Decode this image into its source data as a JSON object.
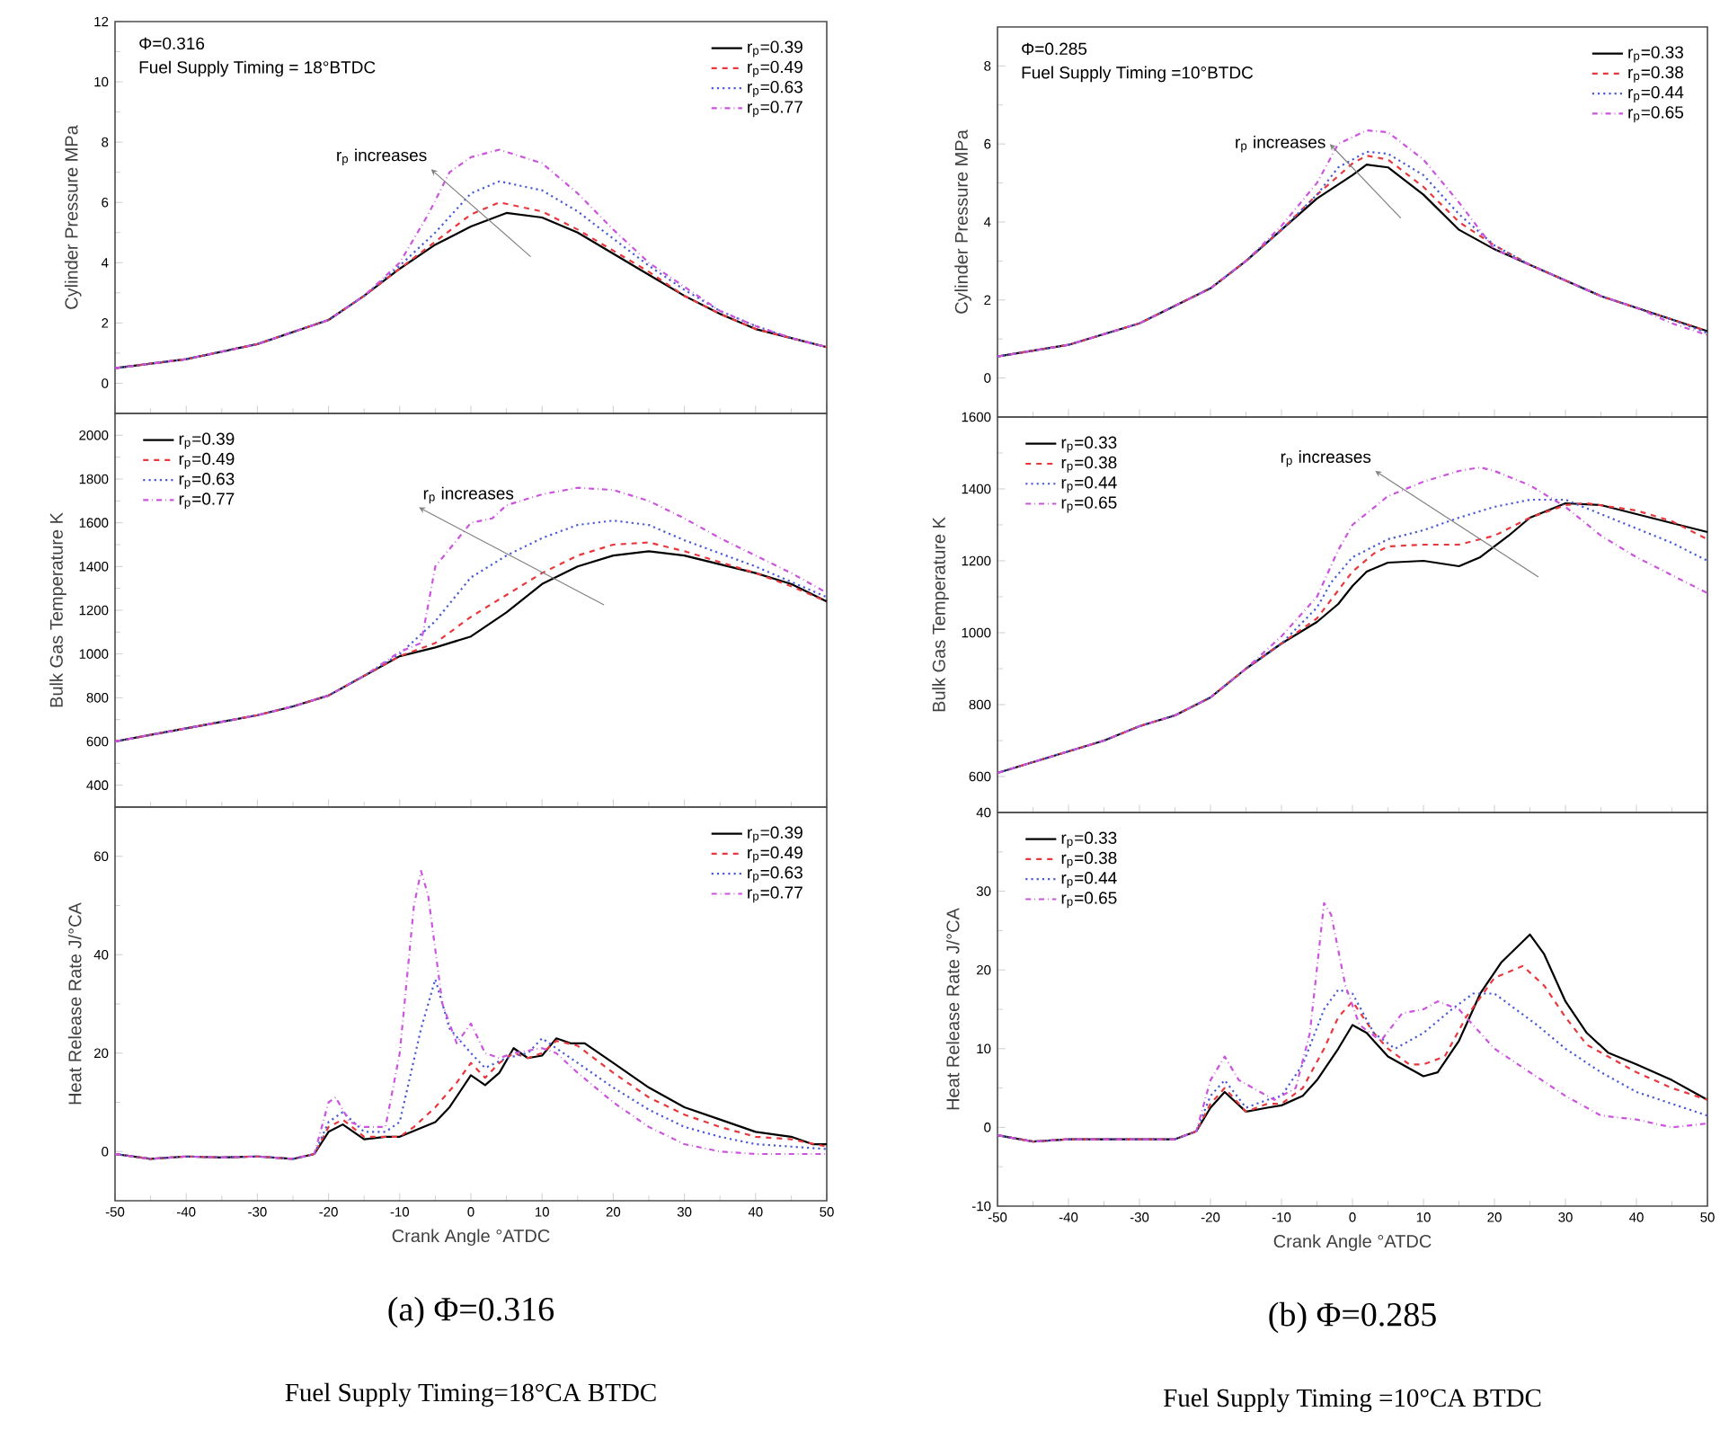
{
  "chart_data": [
    {
      "type": "line",
      "ylabel": "Cylinder Pressure MPa",
      "xlim": [
        -50,
        50
      ],
      "xticks": [
        -50,
        -40,
        -30,
        -20,
        -10,
        0,
        10,
        20,
        30,
        40,
        50
      ],
      "ylim": [
        -1,
        12
      ],
      "yticks": [
        0,
        2,
        4,
        6,
        8,
        10,
        12
      ],
      "tick_labels": "y",
      "legend": "top right",
      "annotations": [
        "Φ=0.316",
        "Fuel Supply Timing = 18°BTDC",
        "r$_{p}$ increases"
      ],
      "series": [
        {
          "name": "r$_{p}$=0.39",
          "color": "#000000",
          "line_style": "solid",
          "x": [
            -50,
            -40,
            -30,
            -20,
            -15,
            -10,
            -5,
            0,
            5,
            10,
            15,
            20,
            25,
            30,
            35,
            40,
            45,
            50
          ],
          "values": [
            0.5,
            0.8,
            1.3,
            2.1,
            2.9,
            3.8,
            4.6,
            5.2,
            5.65,
            5.5,
            5.0,
            4.3,
            3.6,
            2.9,
            2.3,
            1.8,
            1.5,
            1.2
          ]
        },
        {
          "name": "r$_{p}$=0.49",
          "color": "#e8383d",
          "line_style": "dashed",
          "x": [
            -50,
            -40,
            -30,
            -20,
            -15,
            -10,
            -5,
            0,
            4,
            10,
            15,
            20,
            25,
            30,
            35,
            40,
            45,
            50
          ],
          "values": [
            0.5,
            0.8,
            1.3,
            2.1,
            2.9,
            3.8,
            4.7,
            5.6,
            6.0,
            5.7,
            5.1,
            4.4,
            3.7,
            2.9,
            2.3,
            1.8,
            1.5,
            1.2
          ]
        },
        {
          "name": "r$_{p}$=0.63",
          "color": "#4a5bd4",
          "line_style": "dotted",
          "x": [
            -50,
            -40,
            -30,
            -20,
            -15,
            -10,
            -5,
            0,
            4,
            10,
            15,
            20,
            25,
            30,
            35,
            40,
            45,
            50
          ],
          "values": [
            0.5,
            0.8,
            1.3,
            2.1,
            2.9,
            3.9,
            5.0,
            6.3,
            6.7,
            6.4,
            5.7,
            4.8,
            3.9,
            3.1,
            2.4,
            1.9,
            1.5,
            1.2
          ]
        },
        {
          "name": "r$_{p}$=0.77",
          "color": "#cc55dd",
          "line_style": "dashdot",
          "x": [
            -50,
            -40,
            -30,
            -20,
            -15,
            -10,
            -6,
            -3,
            0,
            4,
            10,
            15,
            20,
            25,
            30,
            35,
            40,
            45,
            50
          ],
          "values": [
            0.5,
            0.8,
            1.3,
            2.1,
            2.9,
            4.0,
            5.6,
            7.0,
            7.5,
            7.75,
            7.3,
            6.3,
            5.1,
            4.0,
            3.2,
            2.4,
            1.9,
            1.5,
            1.2
          ]
        }
      ]
    },
    {
      "type": "line",
      "ylabel": "Cylinder Pressure MPa",
      "xlim": [
        -50,
        50
      ],
      "xticks": [
        -50,
        -40,
        -30,
        -20,
        -10,
        0,
        10,
        20,
        30,
        40,
        50
      ],
      "ylim": [
        -1,
        9
      ],
      "yticks": [
        0,
        2,
        4,
        6,
        8
      ],
      "tick_labels": "y",
      "legend": "top right",
      "annotations": [
        "Φ=0.285",
        "Fuel Supply Timing =10°BTDC",
        "r$_{p}$ increases"
      ],
      "series": [
        {
          "name": "r$_{p}$=0.33",
          "color": "#000000",
          "line_style": "solid",
          "x": [
            -50,
            -40,
            -30,
            -20,
            -15,
            -10,
            -5,
            0,
            2,
            5,
            10,
            15,
            20,
            25,
            30,
            35,
            40,
            45,
            50
          ],
          "values": [
            0.55,
            0.85,
            1.4,
            2.3,
            3.0,
            3.8,
            4.6,
            5.2,
            5.47,
            5.4,
            4.7,
            3.8,
            3.3,
            2.9,
            2.5,
            2.1,
            1.8,
            1.5,
            1.2
          ]
        },
        {
          "name": "r$_{p}$=0.38",
          "color": "#e8383d",
          "line_style": "dashed",
          "x": [
            -50,
            -40,
            -30,
            -20,
            -15,
            -10,
            -5,
            0,
            2,
            5,
            10,
            15,
            20,
            25,
            30,
            35,
            40,
            45,
            50
          ],
          "values": [
            0.55,
            0.85,
            1.4,
            2.3,
            3.0,
            3.8,
            4.7,
            5.5,
            5.7,
            5.6,
            4.9,
            4.0,
            3.4,
            2.9,
            2.5,
            2.1,
            1.8,
            1.5,
            1.2
          ]
        },
        {
          "name": "r$_{p}$=0.44",
          "color": "#4a5bd4",
          "line_style": "dotted",
          "x": [
            -50,
            -40,
            -30,
            -20,
            -15,
            -10,
            -5,
            -2,
            2,
            5,
            10,
            15,
            20,
            25,
            30,
            35,
            40,
            45,
            50
          ],
          "values": [
            0.55,
            0.85,
            1.4,
            2.3,
            3.0,
            3.8,
            4.7,
            5.4,
            5.8,
            5.75,
            5.2,
            4.2,
            3.4,
            2.9,
            2.5,
            2.1,
            1.8,
            1.5,
            1.15
          ]
        },
        {
          "name": "r$_{p}$=0.65",
          "color": "#cc55dd",
          "line_style": "dashdot",
          "x": [
            -50,
            -40,
            -30,
            -20,
            -15,
            -10,
            -5,
            -2,
            2,
            5,
            10,
            15,
            20,
            25,
            30,
            35,
            40,
            45,
            50
          ],
          "values": [
            0.55,
            0.85,
            1.4,
            2.3,
            3.0,
            3.9,
            5.0,
            6.0,
            6.35,
            6.3,
            5.6,
            4.5,
            3.3,
            2.9,
            2.5,
            2.1,
            1.8,
            1.4,
            1.1
          ]
        }
      ]
    },
    {
      "type": "line",
      "ylabel": "Bulk Gas Temperature K",
      "xlim": [
        -50,
        50
      ],
      "xticks": [
        -50,
        -40,
        -30,
        -20,
        -10,
        0,
        10,
        20,
        30,
        40,
        50
      ],
      "ylim": [
        300,
        2100
      ],
      "yticks": [
        400,
        600,
        800,
        1000,
        1200,
        1400,
        1600,
        1800,
        2000
      ],
      "tick_labels": "y",
      "legend": "top left",
      "annotations": [
        "r$_{p}$ increases"
      ],
      "series": [
        {
          "name": "r$_{p}$=0.39",
          "color": "#000000",
          "line_style": "solid",
          "x": [
            -50,
            -45,
            -40,
            -35,
            -30,
            -25,
            -20,
            -15,
            -10,
            -5,
            0,
            5,
            10,
            15,
            20,
            25,
            30,
            35,
            40,
            45,
            50
          ],
          "values": [
            600,
            630,
            660,
            690,
            720,
            760,
            810,
            900,
            990,
            1030,
            1080,
            1190,
            1320,
            1400,
            1450,
            1470,
            1450,
            1410,
            1370,
            1320,
            1240
          ]
        },
        {
          "name": "r$_{p}$=0.49",
          "color": "#e8383d",
          "line_style": "dashed",
          "x": [
            -50,
            -45,
            -40,
            -35,
            -30,
            -25,
            -20,
            -15,
            -10,
            -5,
            0,
            5,
            10,
            15,
            20,
            25,
            30,
            35,
            40,
            45,
            50
          ],
          "values": [
            600,
            630,
            660,
            690,
            720,
            760,
            810,
            900,
            990,
            1050,
            1170,
            1270,
            1370,
            1450,
            1500,
            1510,
            1470,
            1420,
            1370,
            1310,
            1240
          ]
        },
        {
          "name": "r$_{p}$=0.63",
          "color": "#4a5bd4",
          "line_style": "dotted",
          "x": [
            -50,
            -45,
            -40,
            -35,
            -30,
            -25,
            -20,
            -15,
            -10,
            -5,
            0,
            5,
            10,
            15,
            20,
            25,
            30,
            35,
            40,
            45,
            50
          ],
          "values": [
            600,
            630,
            660,
            690,
            720,
            760,
            810,
            900,
            1000,
            1150,
            1350,
            1450,
            1530,
            1590,
            1610,
            1590,
            1520,
            1460,
            1400,
            1330,
            1260
          ]
        },
        {
          "name": "r$_{p}$=0.77",
          "color": "#cc55dd",
          "line_style": "dashdot",
          "x": [
            -50,
            -45,
            -40,
            -35,
            -30,
            -25,
            -20,
            -15,
            -10,
            -7,
            -5,
            0,
            3,
            5,
            10,
            15,
            20,
            25,
            30,
            35,
            40,
            45,
            50
          ],
          "values": [
            600,
            630,
            660,
            690,
            720,
            760,
            810,
            900,
            1010,
            1050,
            1400,
            1600,
            1620,
            1680,
            1730,
            1760,
            1750,
            1700,
            1620,
            1530,
            1450,
            1370,
            1280
          ]
        }
      ]
    },
    {
      "type": "line",
      "ylabel": "Bulk Gas Temperature K",
      "xlim": [
        -50,
        50
      ],
      "xticks": [
        -50,
        -40,
        -30,
        -20,
        -10,
        0,
        10,
        20,
        30,
        40,
        50
      ],
      "ylim": [
        500,
        1600
      ],
      "yticks": [
        600,
        800,
        1000,
        1200,
        1400,
        1600
      ],
      "tick_labels": "y",
      "legend": "top left",
      "annotations": [
        "r$_{p}$ increases"
      ],
      "series": [
        {
          "name": "r$_{p}$=0.33",
          "color": "#000000",
          "line_style": "solid",
          "x": [
            -50,
            -45,
            -40,
            -35,
            -30,
            -25,
            -20,
            -15,
            -10,
            -5,
            -2,
            0,
            2,
            5,
            10,
            15,
            18,
            22,
            25,
            30,
            35,
            40,
            45,
            50
          ],
          "values": [
            610,
            640,
            670,
            700,
            740,
            770,
            820,
            900,
            970,
            1030,
            1080,
            1130,
            1170,
            1195,
            1200,
            1185,
            1210,
            1270,
            1320,
            1360,
            1355,
            1330,
            1305,
            1280
          ]
        },
        {
          "name": "r$_{p}$=0.38",
          "color": "#e8383d",
          "line_style": "dashed",
          "x": [
            -50,
            -45,
            -40,
            -35,
            -30,
            -25,
            -20,
            -15,
            -10,
            -5,
            0,
            3,
            5,
            10,
            15,
            20,
            25,
            30,
            33,
            40,
            45,
            50
          ],
          "values": [
            610,
            640,
            670,
            700,
            740,
            770,
            820,
            900,
            970,
            1040,
            1170,
            1220,
            1240,
            1245,
            1245,
            1270,
            1320,
            1355,
            1360,
            1340,
            1310,
            1260
          ]
        },
        {
          "name": "r$_{p}$=0.44",
          "color": "#4a5bd4",
          "line_style": "dotted",
          "x": [
            -50,
            -45,
            -40,
            -35,
            -30,
            -25,
            -20,
            -15,
            -10,
            -5,
            -3,
            0,
            5,
            10,
            15,
            20,
            25,
            30,
            35,
            40,
            45,
            50
          ],
          "values": [
            610,
            640,
            670,
            700,
            740,
            770,
            820,
            900,
            970,
            1070,
            1140,
            1210,
            1260,
            1285,
            1320,
            1350,
            1370,
            1370,
            1330,
            1290,
            1250,
            1200
          ]
        },
        {
          "name": "r$_{p}$=0.65",
          "color": "#cc55dd",
          "line_style": "dashdot",
          "x": [
            -50,
            -45,
            -40,
            -35,
            -30,
            -25,
            -20,
            -15,
            -10,
            -5,
            -2,
            0,
            5,
            10,
            15,
            18,
            20,
            25,
            30,
            35,
            40,
            45,
            50
          ],
          "values": [
            610,
            640,
            670,
            700,
            740,
            770,
            820,
            900,
            990,
            1100,
            1230,
            1300,
            1380,
            1420,
            1450,
            1460,
            1450,
            1410,
            1350,
            1270,
            1210,
            1160,
            1110
          ]
        }
      ]
    },
    {
      "type": "line",
      "ylabel": "Heat Release Rate J/°CA",
      "xlabel": "Crank Angle °ATDC",
      "xlim": [
        -50,
        50
      ],
      "xticks": [
        -50,
        -40,
        -30,
        -20,
        -10,
        0,
        10,
        20,
        30,
        40,
        50
      ],
      "ylim": [
        -10,
        70
      ],
      "yticks": [
        0,
        20,
        40,
        60
      ],
      "legend": "top right",
      "annotations": [
        "(a) Φ=0.316",
        "Fuel Supply Timing=18°CA BTDC"
      ],
      "series": [
        {
          "name": "r$_{p}$=0.39",
          "color": "#000000",
          "line_style": "solid",
          "x": [
            -50,
            -45,
            -40,
            -35,
            -30,
            -25,
            -22,
            -20,
            -18,
            -15,
            -12,
            -10,
            -5,
            -3,
            0,
            2,
            4,
            6,
            8,
            10,
            12,
            14,
            16,
            20,
            25,
            30,
            35,
            40,
            45,
            48,
            50
          ],
          "values": [
            -0.5,
            -1.5,
            -1,
            -1.2,
            -1,
            -1.5,
            -0.5,
            4,
            5.5,
            2.5,
            3,
            3,
            6,
            9,
            15.5,
            13.5,
            16,
            21,
            19,
            19.5,
            23,
            22,
            22,
            18,
            13,
            9,
            6.5,
            4,
            3,
            1.5,
            1.5
          ]
        },
        {
          "name": "r$_{p}$=0.49",
          "color": "#e8383d",
          "line_style": "dashed",
          "x": [
            -50,
            -45,
            -40,
            -35,
            -30,
            -25,
            -22,
            -20,
            -18,
            -15,
            -10,
            -8,
            -5,
            -2,
            0,
            2,
            4,
            6,
            8,
            10,
            12,
            15,
            20,
            25,
            30,
            35,
            40,
            45,
            50
          ],
          "values": [
            -0.5,
            -1.5,
            -1,
            -1.2,
            -1,
            -1.5,
            -0.5,
            5,
            6.5,
            3,
            3,
            5,
            9,
            14,
            18,
            15,
            18,
            20,
            19,
            20,
            22.5,
            21.5,
            16,
            11,
            7.5,
            5,
            3,
            2.5,
            1
          ]
        },
        {
          "name": "r$_{p}$=0.63",
          "color": "#4a5bd4",
          "line_style": "dotted",
          "x": [
            -50,
            -45,
            -40,
            -35,
            -30,
            -25,
            -22,
            -20,
            -18,
            -15,
            -12,
            -10,
            -7,
            -5,
            -3,
            0,
            2,
            5,
            8,
            10,
            12,
            15,
            20,
            25,
            30,
            35,
            40,
            45,
            50
          ],
          "values": [
            -0.5,
            -1.5,
            -1,
            -1.2,
            -1,
            -1.5,
            -0.5,
            6,
            8,
            4,
            4,
            6,
            25,
            35,
            25,
            20,
            17,
            19,
            20,
            23,
            21,
            18,
            13,
            8.5,
            5,
            3,
            1.5,
            1,
            0.5
          ]
        },
        {
          "name": "r$_{p}$=0.77",
          "color": "#cc55dd",
          "line_style": "dashdot",
          "x": [
            -50,
            -45,
            -40,
            -35,
            -30,
            -25,
            -22,
            -20,
            -19,
            -17,
            -15,
            -12,
            -10,
            -8,
            -7,
            -6,
            -4,
            -2,
            0,
            2,
            4,
            6,
            10,
            12,
            15,
            20,
            25,
            30,
            35,
            40,
            45,
            50
          ],
          "values": [
            -0.5,
            -1.5,
            -1,
            -1.2,
            -1,
            -1.5,
            -0.5,
            10,
            11,
            6,
            5,
            5,
            20,
            50,
            57,
            52,
            30,
            22,
            26,
            20,
            19,
            20,
            21,
            20,
            16,
            10,
            5,
            1.5,
            0,
            -0.5,
            -0.5,
            -0.5
          ]
        }
      ]
    },
    {
      "type": "line",
      "ylabel": "Heat Release Rate J/°CA",
      "xlabel": "Crank Angle °ATDC",
      "xlim": [
        -50,
        50
      ],
      "xticks": [
        -50,
        -40,
        -30,
        -20,
        -10,
        0,
        10,
        20,
        30,
        40,
        50
      ],
      "ylim": [
        -10,
        40
      ],
      "yticks": [
        -10,
        0,
        10,
        20,
        30,
        40
      ],
      "legend": "top left",
      "annotations": [
        "(b) Φ=0.285",
        "Fuel Supply Timing =10°CA BTDC"
      ],
      "series": [
        {
          "name": "r$_{p}$=0.33",
          "color": "#000000",
          "line_style": "solid",
          "x": [
            -50,
            -45,
            -40,
            -35,
            -30,
            -25,
            -22,
            -20,
            -18,
            -15,
            -12,
            -10,
            -7,
            -5,
            -2,
            0,
            2,
            5,
            8,
            10,
            12,
            15,
            18,
            21,
            25,
            27,
            30,
            33,
            36,
            40,
            45,
            48,
            50
          ],
          "values": [
            -1,
            -1.8,
            -1.5,
            -1.5,
            -1.5,
            -1.5,
            -0.5,
            2.5,
            4.5,
            2,
            2.5,
            2.8,
            4,
            6,
            10,
            13,
            12,
            9,
            7.5,
            6.5,
            7,
            11,
            17,
            21,
            24.5,
            22,
            16,
            12,
            9.5,
            8,
            6,
            4.5,
            3.5
          ]
        },
        {
          "name": "r$_{p}$=0.38",
          "color": "#e8383d",
          "line_style": "dashed",
          "x": [
            -50,
            -45,
            -40,
            -35,
            -30,
            -25,
            -22,
            -20,
            -18,
            -15,
            -12,
            -10,
            -7,
            -4,
            -2,
            0,
            3,
            5,
            8,
            10,
            13,
            16,
            20,
            24,
            27,
            30,
            33,
            36,
            40,
            45,
            50
          ],
          "values": [
            -1,
            -1.8,
            -1.5,
            -1.5,
            -1.5,
            -1.5,
            -0.5,
            3,
            5,
            2,
            3,
            3,
            5,
            10,
            14,
            16,
            12,
            10,
            8,
            8,
            9,
            14,
            19,
            20.5,
            18,
            14,
            10.5,
            9,
            7,
            5,
            3.5
          ]
        },
        {
          "name": "r$_{p}$=0.44",
          "color": "#4a5bd4",
          "line_style": "dotted",
          "x": [
            -50,
            -45,
            -40,
            -35,
            -30,
            -25,
            -22,
            -20,
            -18,
            -15,
            -12,
            -10,
            -7,
            -4,
            -2,
            0,
            3,
            6,
            10,
            14,
            17,
            20,
            23,
            26,
            30,
            35,
            40,
            45,
            50
          ],
          "values": [
            -1,
            -1.8,
            -1.5,
            -1.5,
            -1.5,
            -1.5,
            -0.5,
            4,
            6,
            2.5,
            3.5,
            4,
            8,
            15,
            17.5,
            17,
            12,
            10,
            12,
            15,
            17,
            17,
            15,
            13,
            10,
            7,
            4.5,
            3,
            1.5
          ]
        },
        {
          "name": "r$_{p}$=0.65",
          "color": "#cc55dd",
          "line_style": "dashdot",
          "x": [
            -50,
            -45,
            -40,
            -35,
            -30,
            -25,
            -22,
            -20,
            -18,
            -16,
            -13,
            -11,
            -8,
            -6,
            -4,
            -3,
            -1,
            1,
            4,
            7,
            10,
            12,
            15,
            18,
            20,
            25,
            30,
            35,
            40,
            45,
            50
          ],
          "values": [
            -1,
            -1.8,
            -1.5,
            -1.5,
            -1.5,
            -1.5,
            -0.5,
            6,
            9,
            6,
            4.5,
            3.5,
            5,
            12,
            28.5,
            27,
            18,
            13,
            11,
            14.5,
            15,
            16,
            15,
            12,
            10,
            7,
            4,
            1.5,
            1,
            0,
            0.5
          ]
        }
      ]
    }
  ]
}
